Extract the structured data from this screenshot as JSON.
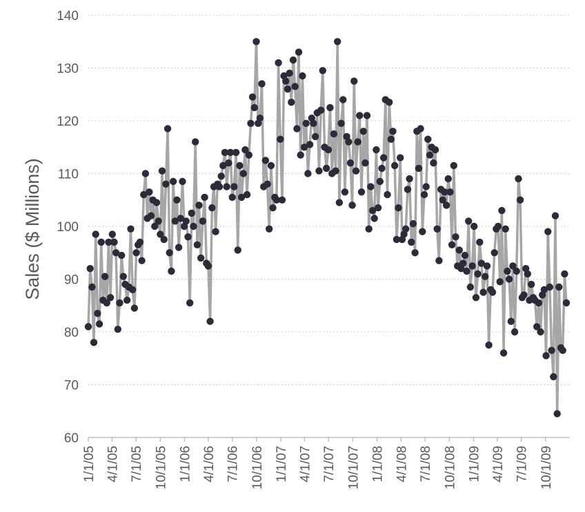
{
  "chart_data": {
    "type": "line",
    "title": "",
    "xlabel": "",
    "ylabel": "Sales ($ Millions)",
    "ylim": [
      60,
      140
    ],
    "yticks": [
      60,
      70,
      80,
      90,
      100,
      110,
      120,
      130,
      140
    ],
    "grid": true,
    "legend": "none",
    "x_tick_labels": [
      "1/1/05",
      "4/1/05",
      "7/1/05",
      "10/1/05",
      "1/1/06",
      "4/1/06",
      "7/1/06",
      "10/1/06",
      "1/1/07",
      "4/1/07",
      "7/1/07",
      "10/1/07",
      "1/1/08",
      "4/1/08",
      "7/1/08",
      "10/1/08",
      "1/1/09",
      "4/1/09",
      "7/1/09",
      "10/1/09"
    ],
    "x_start": "1/1/05",
    "x_step_days": 7,
    "series": [
      {
        "line_color": "#a6a6a6",
        "marker_color": "#2b2b3a",
        "values": [
          81.0,
          92.0,
          88.5,
          78.0,
          98.5,
          83.5,
          81.5,
          97.0,
          86.0,
          90.5,
          85.5,
          97.0,
          86.5,
          98.5,
          97.0,
          95.0,
          80.5,
          85.5,
          94.5,
          90.5,
          89.0,
          86.0,
          88.5,
          99.5,
          88.0,
          84.5,
          95.0,
          96.5,
          97.0,
          93.5,
          106.0,
          110.0,
          101.5,
          106.5,
          102.0,
          105.0,
          100.0,
          104.5,
          101.0,
          98.5,
          110.5,
          97.5,
          108.0,
          118.5,
          95.0,
          91.5,
          108.5,
          101.0,
          105.0,
          96.0,
          101.5,
          108.5,
          100.0,
          101.0,
          98.0,
          85.5,
          102.5,
          100.0,
          116.0,
          96.5,
          104.0,
          94.0,
          101.0,
          105.5,
          93.0,
          92.5,
          82.0,
          103.5,
          107.5,
          99.0,
          108.0,
          107.5,
          109.5,
          111.5,
          114.0,
          107.5,
          112.0,
          114.0,
          105.5,
          107.5,
          114.0,
          95.5,
          111.5,
          105.5,
          110.0,
          114.5,
          106.0,
          113.5,
          119.5,
          124.5,
          122.5,
          135.0,
          119.5,
          120.5,
          127.0,
          107.5,
          112.5,
          108.0,
          99.5,
          111.5,
          103.5,
          105.5,
          105.0,
          131.0,
          116.5,
          105.0,
          128.5,
          127.5,
          126.0,
          129.0,
          123.5,
          131.5,
          126.5,
          118.5,
          133.0,
          113.5,
          128.5,
          115.0,
          119.5,
          110.0,
          115.5,
          120.5,
          119.5,
          117.0,
          121.5,
          110.5,
          122.0,
          129.5,
          115.0,
          111.0,
          114.5,
          122.5,
          110.0,
          117.5,
          110.5,
          135.0,
          104.5,
          119.5,
          124.0,
          106.5,
          117.0,
          116.0,
          112.0,
          104.0,
          127.5,
          110.5,
          116.0,
          121.0,
          106.5,
          118.0,
          112.0,
          121.0,
          99.5,
          107.5,
          103.0,
          101.5,
          114.5,
          103.5,
          108.5,
          111.0,
          113.0,
          124.0,
          106.0,
          123.5,
          116.5,
          118.0,
          111.5,
          97.5,
          103.5,
          113.0,
          97.5,
          98.5,
          99.5,
          107.0,
          109.0,
          97.0,
          100.5,
          95.0,
          118.0,
          111.0,
          118.5,
          99.0,
          106.0,
          107.5,
          116.5,
          113.5,
          115.0,
          112.0,
          114.5,
          99.5,
          93.5,
          107.0,
          105.0,
          106.5,
          104.0,
          109.0,
          106.5,
          96.5,
          111.5,
          98.0,
          92.5,
          95.5,
          92.0,
          93.0,
          94.5,
          91.5,
          101.0,
          88.5,
          92.5,
          100.0,
          86.5,
          91.0,
          97.0,
          93.0,
          87.5,
          90.5,
          92.5,
          77.5,
          88.0,
          87.5,
          95.0,
          99.5,
          100.0,
          89.5,
          103.0,
          76.0,
          99.5,
          91.5,
          90.0,
          82.0,
          92.5,
          80.0,
          91.5,
          109.0,
          105.0,
          86.5,
          87.0,
          92.0,
          91.0,
          86.0,
          89.0,
          86.5,
          86.0,
          81.0,
          85.5,
          80.0,
          87.0,
          88.0,
          75.5,
          99.0,
          88.5,
          76.5,
          71.5,
          102.0,
          64.5,
          88.5,
          77.0,
          76.5,
          91.0,
          85.5
        ]
      }
    ]
  }
}
